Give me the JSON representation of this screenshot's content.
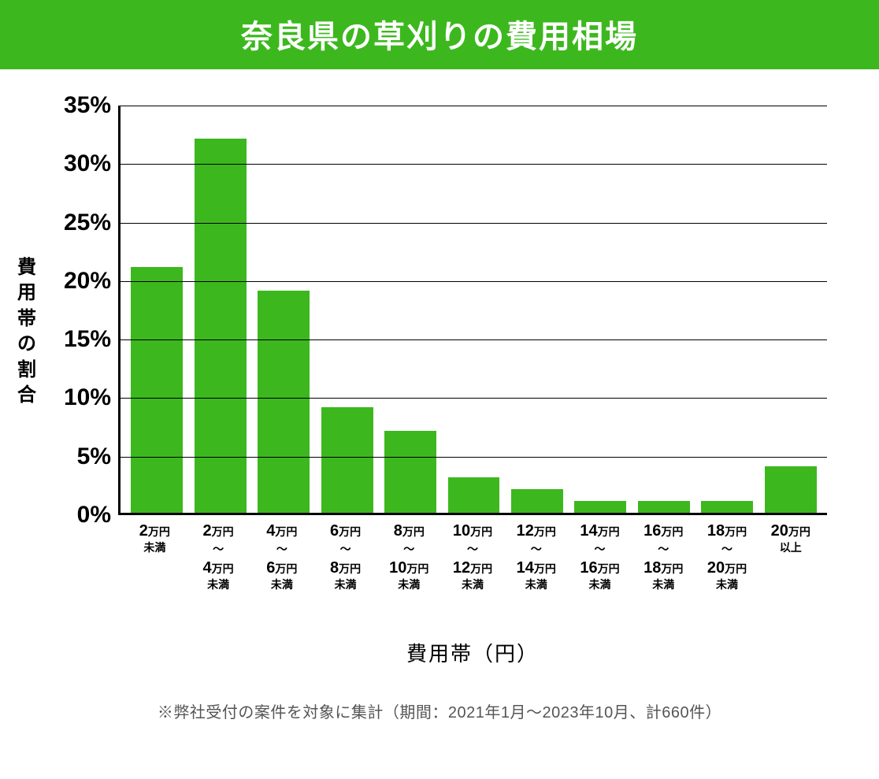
{
  "title": "奈良県の草刈りの費用相場",
  "title_bg": "#3cb81e",
  "title_color": "#ffffff",
  "title_fontsize": 40,
  "y_axis_title": "費用帯の割合",
  "y_axis_fontsize": 24,
  "x_axis_title": "費用帯（円）",
  "x_axis_fontsize": 26,
  "footnote": "※弊社受付の案件を対象に集計（期間：2021年1月～2023年10月、計660件）",
  "footnote_fontsize": 20,
  "chart": {
    "type": "bar",
    "ylim": [
      0,
      35
    ],
    "ytick_step": 5,
    "ytick_suffix": "%",
    "ytick_fontsize": 30,
    "grid_color": "#000000",
    "axis_color": "#000000",
    "background_color": "#ffffff",
    "bar_color": "#3cb81e",
    "bar_width": 0.82,
    "label_num_fontsize": 20,
    "label_unit_fontsize": 14,
    "label_suffix_fontsize": 14,
    "categories": [
      {
        "top_num": "2",
        "top_unit": "万円",
        "sep": "",
        "bot_num": "",
        "bot_unit": "",
        "suffix": "未満"
      },
      {
        "top_num": "2",
        "top_unit": "万円",
        "sep": "～",
        "bot_num": "4",
        "bot_unit": "万円",
        "suffix": "未満"
      },
      {
        "top_num": "4",
        "top_unit": "万円",
        "sep": "～",
        "bot_num": "6",
        "bot_unit": "万円",
        "suffix": "未満"
      },
      {
        "top_num": "6",
        "top_unit": "万円",
        "sep": "～",
        "bot_num": "8",
        "bot_unit": "万円",
        "suffix": "未満"
      },
      {
        "top_num": "8",
        "top_unit": "万円",
        "sep": "～",
        "bot_num": "10",
        "bot_unit": "万円",
        "suffix": "未満"
      },
      {
        "top_num": "10",
        "top_unit": "万円",
        "sep": "～",
        "bot_num": "12",
        "bot_unit": "万円",
        "suffix": "未満"
      },
      {
        "top_num": "12",
        "top_unit": "万円",
        "sep": "～",
        "bot_num": "14",
        "bot_unit": "万円",
        "suffix": "未満"
      },
      {
        "top_num": "14",
        "top_unit": "万円",
        "sep": "～",
        "bot_num": "16",
        "bot_unit": "万円",
        "suffix": "未満"
      },
      {
        "top_num": "16",
        "top_unit": "万円",
        "sep": "～",
        "bot_num": "18",
        "bot_unit": "万円",
        "suffix": "未満"
      },
      {
        "top_num": "18",
        "top_unit": "万円",
        "sep": "～",
        "bot_num": "20",
        "bot_unit": "万円",
        "suffix": "未満"
      },
      {
        "top_num": "20",
        "top_unit": "万円",
        "sep": "",
        "bot_num": "",
        "bot_unit": "",
        "suffix": "以上"
      }
    ],
    "values": [
      21,
      32,
      19,
      9,
      7,
      3,
      2,
      1,
      1,
      1,
      4
    ]
  }
}
